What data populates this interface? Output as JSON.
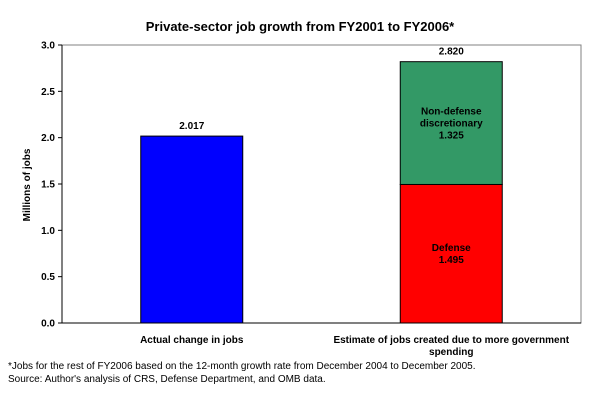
{
  "chart_data": {
    "type": "bar",
    "title": "Private-sector job growth from FY2001 to FY2006*",
    "ylabel": "Millions of jobs",
    "xlabel": "",
    "ylim": [
      0,
      3.0
    ],
    "yticks": [
      "0.0",
      "0.5",
      "1.0",
      "1.5",
      "2.0",
      "2.5",
      "3.0"
    ],
    "categories": [
      {
        "label_lines": [
          "Actual change in jobs"
        ]
      },
      {
        "label_lines": [
          "Estimate of jobs created due to more government",
          "spending"
        ]
      }
    ],
    "bars": [
      {
        "category": 0,
        "total": 2.017,
        "total_label": "2.017",
        "segments": [
          {
            "value": 2.017,
            "color": "#0000ff",
            "label_lines": []
          }
        ]
      },
      {
        "category": 1,
        "total": 2.82,
        "total_label": "2.820",
        "segments": [
          {
            "value": 1.495,
            "color": "#ff0000",
            "label_lines": [
              "Defense",
              "1.495"
            ]
          },
          {
            "value": 1.325,
            "color": "#339966",
            "label_lines": [
              "Non-defense",
              "discretionary",
              "1.325"
            ]
          }
        ]
      }
    ],
    "grid": false,
    "legend": "none"
  },
  "footnotes": {
    "note": "*Jobs for the rest of FY2006 based on the 12-month growth rate from December 2004 to December 2005.",
    "source": "Source:  Author's analysis of CRS, Defense Department, and OMB data."
  }
}
